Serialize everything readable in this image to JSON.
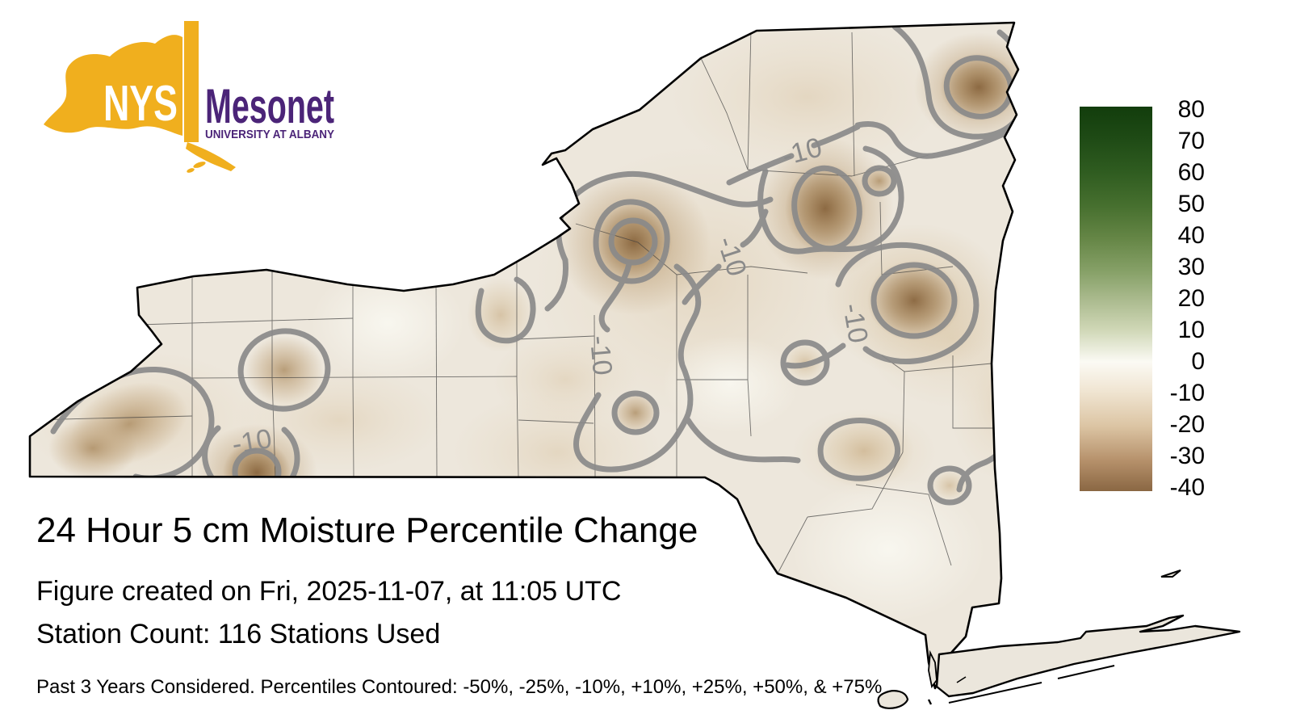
{
  "logo": {
    "nys": "NYS",
    "mesonet": "Mesonet",
    "subtitle": "UNIVERSITY AT ALBANY",
    "gold": "#F0AF1E",
    "purple": "#4B2478"
  },
  "title": "24 Hour 5 cm Moisture Percentile Change",
  "created_line": "Figure created on Fri, 2025-11-07, at 11:05 UTC",
  "station_line": "Station Count: 116 Stations Used",
  "footnote": "Past 3 Years Considered. Percentiles Contoured: -50%, -25%, -10%, +10%, +25%, +50%, & +75%",
  "colorbar": {
    "ticks": [
      80,
      70,
      60,
      50,
      40,
      30,
      20,
      10,
      0,
      -10,
      -20,
      -30,
      -40
    ],
    "top_value": 80,
    "bottom_value": -40,
    "green_color": "#123d0c",
    "white_color": "#fbfaf4",
    "brown_color": "#8a6743"
  },
  "map": {
    "region": "New York State",
    "contour_label": "-10",
    "contour_levels_pct": [
      -50,
      -25,
      -10,
      10,
      25,
      50,
      75
    ],
    "contour_color": "#8a8a8a",
    "base_color": "#ede7dc",
    "blob_color": "#8a6740"
  }
}
